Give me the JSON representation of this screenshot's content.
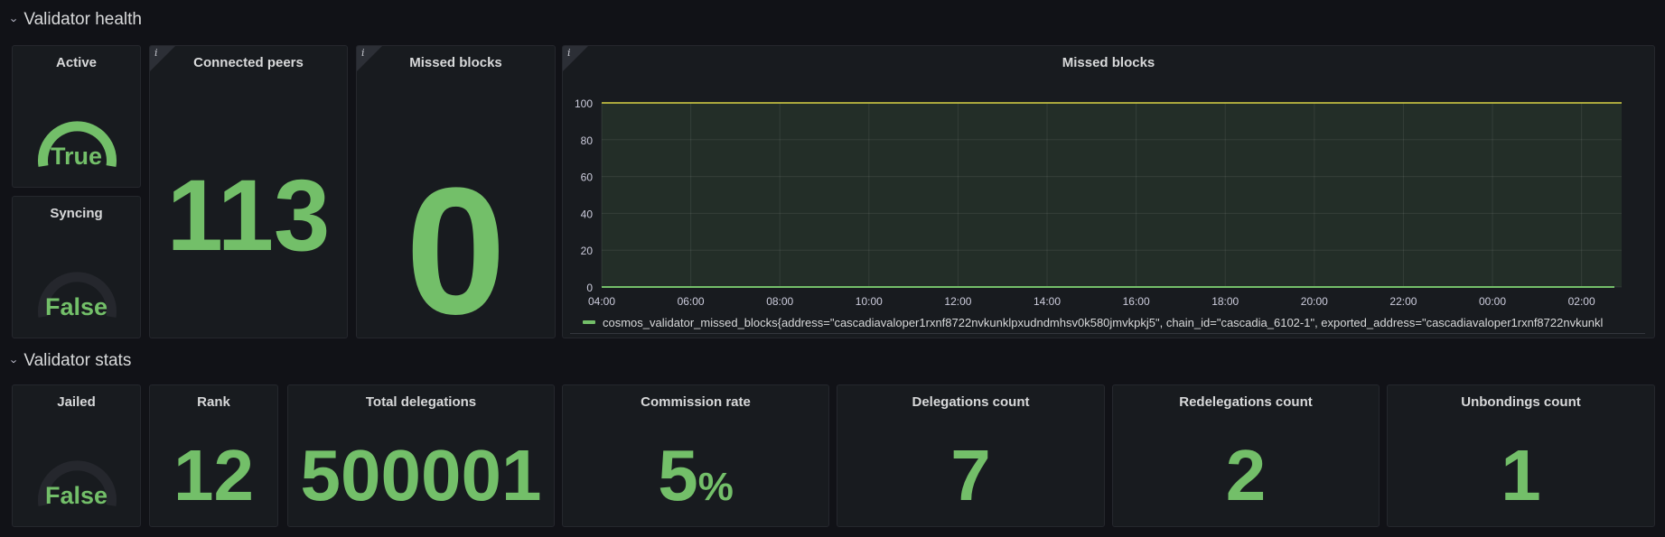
{
  "rows": {
    "health": {
      "title": "Validator health"
    },
    "stats": {
      "title": "Validator stats"
    }
  },
  "panels": {
    "active": {
      "title": "Active",
      "value": "True",
      "level": 1
    },
    "syncing": {
      "title": "Syncing",
      "value": "False",
      "level": 0
    },
    "connected_peers": {
      "title": "Connected peers",
      "value": "113"
    },
    "missed_blocks_stat": {
      "title": "Missed blocks",
      "value": "0"
    },
    "missed_blocks_graph": {
      "title": "Missed blocks"
    },
    "jailed": {
      "title": "Jailed",
      "value": "False",
      "level": 0
    },
    "rank": {
      "title": "Rank",
      "value": "12"
    },
    "total_delegations": {
      "title": "Total delegations",
      "value": "500001"
    },
    "commission_rate": {
      "title": "Commission rate",
      "value": "5",
      "unit": "%"
    },
    "delegations_count": {
      "title": "Delegations count",
      "value": "7"
    },
    "redelegations_count": {
      "title": "Redelegations count",
      "value": "2"
    },
    "unbondings_count": {
      "title": "Unbondings count",
      "value": "1"
    }
  },
  "info_icon": "info-icon",
  "colors": {
    "green": "#73bf69",
    "threshold_yellow": "#d9d446",
    "gauge_track": "#25272d",
    "panel_bg": "#181b1f",
    "page_bg": "#111217"
  },
  "chart_data": {
    "type": "line",
    "title": "Missed blocks",
    "x": [
      "04:00",
      "06:00",
      "08:00",
      "10:00",
      "12:00",
      "14:00",
      "16:00",
      "18:00",
      "20:00",
      "22:00",
      "00:00",
      "02:00"
    ],
    "y_ticks": [
      0,
      20,
      40,
      60,
      80,
      100
    ],
    "ylim": [
      0,
      100
    ],
    "grid": true,
    "threshold": 100,
    "series": [
      {
        "name": "cosmos_validator_missed_blocks{address=\"cascadiavaloper1rxnf8722nvkunklpxudndmhsv0k580jmvkpkj5\", chain_id=\"cascadia_6102-1\", exported_address=\"cascadiavaloper1rxnf8722nvkunkl",
        "values": [
          0,
          0,
          0,
          0,
          0,
          0,
          0,
          0,
          0,
          0,
          0,
          0
        ]
      }
    ],
    "legend": "bottom"
  }
}
